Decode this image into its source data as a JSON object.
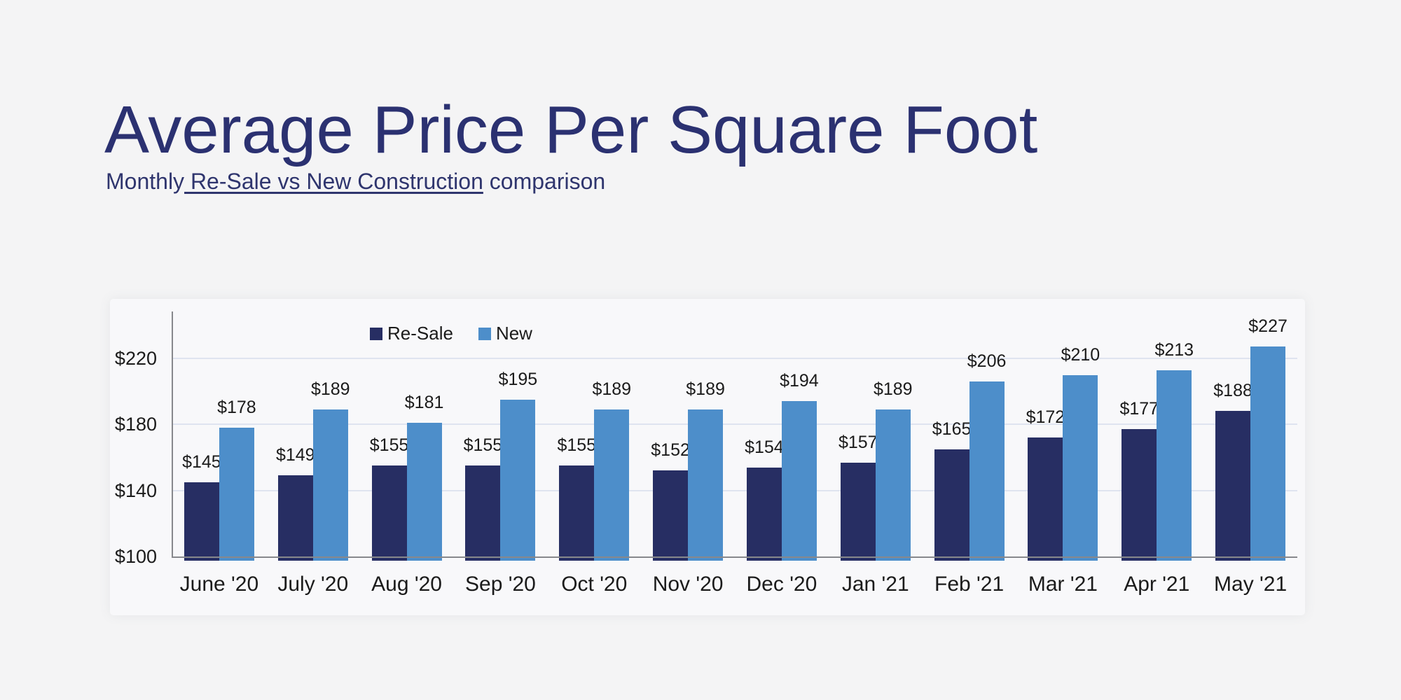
{
  "page": {
    "background_color": "#f4f4f5"
  },
  "header": {
    "title": "Average Price Per Square Foot",
    "subtitle_prefix": "Monthly",
    "subtitle_underlined": " Re-Sale vs New Construction",
    "subtitle_suffix": " comparison",
    "title_color": "#2b3171"
  },
  "legend": {
    "items": [
      {
        "label": "Re-Sale",
        "color": "#272e63"
      },
      {
        "label": "New",
        "color": "#4d8eca"
      }
    ]
  },
  "chart_data": {
    "type": "bar",
    "title": "Average Price Per Square Foot",
    "subtitle": "Monthly Re-Sale vs New Construction comparison",
    "categories": [
      "June '20",
      "July '20",
      "Aug '20",
      "Sep '20",
      "Oct '20",
      "Nov '20",
      "Dec '20",
      "Jan '21",
      "Feb '21",
      "Mar '21",
      "Apr '21",
      "May '21"
    ],
    "series": [
      {
        "name": "Re-Sale",
        "color": "#272e63",
        "values": [
          145,
          149,
          155,
          155,
          155,
          152,
          154,
          157,
          165,
          172,
          177,
          188
        ]
      },
      {
        "name": "New",
        "color": "#4d8eca",
        "values": [
          178,
          189,
          181,
          195,
          189,
          189,
          194,
          189,
          206,
          210,
          213,
          227
        ]
      }
    ],
    "data_label_prefix": "$",
    "y_ticks": [
      100,
      140,
      180,
      220
    ],
    "y_tick_prefix": "$",
    "ylim": [
      100,
      250
    ],
    "xlabel": "",
    "ylabel": "",
    "grid": true,
    "legend_position": "top",
    "grid_color": "#dfe4f0",
    "axis_color": "#87888c"
  }
}
